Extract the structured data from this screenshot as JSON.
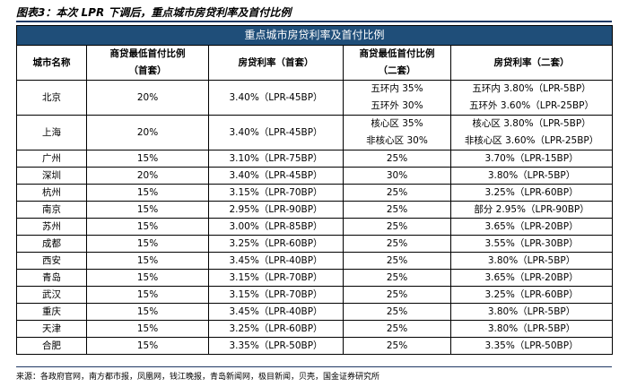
{
  "figure_title": "图表3：本次 LPR 下调后，重点城市房贷利率及首付比例",
  "table": {
    "banner": "重点城市房贷利率及首付比例",
    "headers": {
      "city": "城市名称",
      "dp_first_line1": "商贷最低首付比例",
      "dp_first_line2": "（首套）",
      "rate_first": "房贷利率（首套）",
      "dp_second_line1": "商贷最低首付比例",
      "dp_second_line2": "（二套）",
      "rate_second": "房贷利率（二套）"
    },
    "double_rows": [
      {
        "city": "北京",
        "dp_first": "20%",
        "rate_first": "3.40%（LPR-45BP）",
        "dp_second": [
          "五环内 35%",
          "五环外 30%"
        ],
        "rate_second": [
          "五环内 3.80%（LPR-5BP）",
          "五环外 3.60%（LPR-25BP）"
        ]
      },
      {
        "city": "上海",
        "dp_first": "20%",
        "rate_first": "3.40%（LPR-45BP）",
        "dp_second": [
          "核心区 35%",
          "非核心区 30%"
        ],
        "rate_second": [
          "核心区 3.80%（LPR-5BP）",
          "非核心区 3.60%（LPR-25BP）"
        ]
      }
    ],
    "rows": [
      {
        "city": "广州",
        "dp_first": "15%",
        "rate_first": "3.10%（LPR-75BP）",
        "dp_second": "25%",
        "rate_second": "3.70%（LPR-15BP）"
      },
      {
        "city": "深圳",
        "dp_first": "20%",
        "rate_first": "3.40%（LPR-45BP）",
        "dp_second": "30%",
        "rate_second": "3.80%（LPR-5BP）"
      },
      {
        "city": "杭州",
        "dp_first": "15%",
        "rate_first": "3.15%（LPR-70BP）",
        "dp_second": "25%",
        "rate_second": "3.25%（LPR-60BP）"
      },
      {
        "city": "南京",
        "dp_first": "15%",
        "rate_first": "2.95%（LPR-90BP）",
        "dp_second": "25%",
        "rate_second": "部分 2.95%（LPR-90BP）"
      },
      {
        "city": "苏州",
        "dp_first": "15%",
        "rate_first": "3.00%（LPR-85BP）",
        "dp_second": "25%",
        "rate_second": "3.65%（LPR-20BP）"
      },
      {
        "city": "成都",
        "dp_first": "15%",
        "rate_first": "3.25%（LPR-60BP）",
        "dp_second": "25%",
        "rate_second": "3.55%（LPR-30BP）"
      },
      {
        "city": "西安",
        "dp_first": "15%",
        "rate_first": "3.45%（LPR-40BP）",
        "dp_second": "25%",
        "rate_second": "3.80%（LPR-5BP）"
      },
      {
        "city": "青岛",
        "dp_first": "15%",
        "rate_first": "3.15%（LPR-70BP）",
        "dp_second": "25%",
        "rate_second": "3.65%（LPR-20BP）"
      },
      {
        "city": "武汉",
        "dp_first": "15%",
        "rate_first": "3.15%（LPR-70BP）",
        "dp_second": "25%",
        "rate_second": "3.25%（LPR-60BP）"
      },
      {
        "city": "重庆",
        "dp_first": "15%",
        "rate_first": "3.45%（LPR-40BP）",
        "dp_second": "25%",
        "rate_second": "3.80%（LPR-5BP）"
      },
      {
        "city": "天津",
        "dp_first": "15%",
        "rate_first": "3.25%（LPR-60BP）",
        "dp_second": "25%",
        "rate_second": "3.80%（LPR-5BP）"
      },
      {
        "city": "合肥",
        "dp_first": "15%",
        "rate_first": "3.35%（LPR-50BP）",
        "dp_second": "25%",
        "rate_second": "3.35%（LPR-50BP）"
      }
    ]
  },
  "source": "来源：各政府官网，南方都市报，凤凰网，钱江晚报，青岛新闻网，极目新闻，贝壳，国金证券研究所"
}
